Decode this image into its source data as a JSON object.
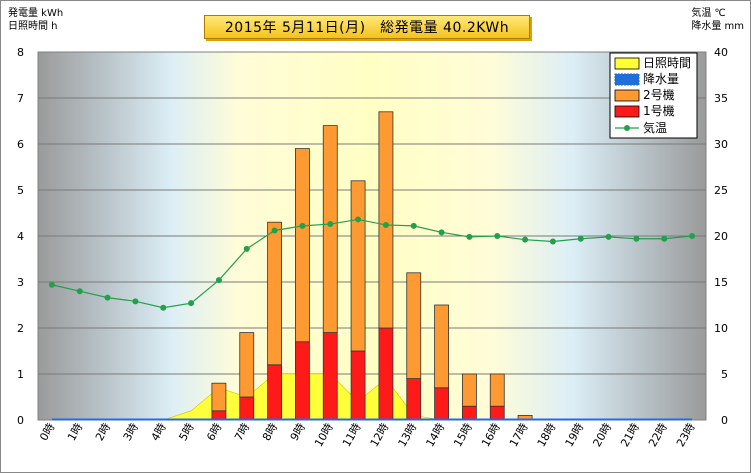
{
  "header": {
    "title": "2015年 5月11日(月)　総発電量 40.2KWh",
    "left_unit_line1": "発電量 kWh",
    "left_unit_line2": "日照時間 h",
    "right_unit_line1": "気温 ℃",
    "right_unit_line2": "降水量 mm"
  },
  "colors": {
    "sunshine": "#ffff33",
    "rain": "#1f6fd8",
    "unit2": "#ff9a33",
    "unit1": "#ff1a1a",
    "temp": "#22a04b"
  },
  "chart_data": {
    "type": "bar",
    "categories": [
      "0時",
      "1時",
      "2時",
      "3時",
      "4時",
      "5時",
      "6時",
      "7時",
      "8時",
      "9時",
      "10時",
      "11時",
      "12時",
      "13時",
      "14時",
      "15時",
      "16時",
      "17時",
      "18時",
      "19時",
      "20時",
      "21時",
      "22時",
      "23時"
    ],
    "ylim": [
      0,
      8
    ],
    "y2lim": [
      0,
      40
    ],
    "yticks": [
      0,
      1,
      2,
      3,
      4,
      5,
      6,
      7,
      8
    ],
    "y2ticks": [
      0,
      5,
      10,
      15,
      20,
      25,
      30,
      35,
      40
    ],
    "grid": true,
    "legend_position": "top-right",
    "legend": [
      "日照時間",
      "降水量",
      "2号機",
      "1号機",
      "気温"
    ],
    "series": [
      {
        "name": "日照時間",
        "kind": "area",
        "axis": "left",
        "values": [
          0,
          0,
          0,
          0,
          0,
          0.2,
          0.7,
          0.5,
          1.0,
          1.0,
          1.0,
          0.4,
          0.9,
          0.1,
          0,
          0,
          0,
          0,
          0,
          0,
          0,
          0,
          0,
          0
        ]
      },
      {
        "name": "降水量",
        "kind": "bar",
        "axis": "right",
        "values": [
          0,
          0,
          0,
          0,
          0,
          0,
          0,
          0,
          0,
          0,
          0,
          0,
          0,
          0,
          0,
          0,
          0,
          0,
          0,
          0,
          0,
          0,
          0,
          0
        ]
      },
      {
        "name": "2号機",
        "kind": "stacked-bar",
        "axis": "left",
        "values": [
          0,
          0,
          0,
          0,
          0,
          0,
          0.6,
          1.4,
          3.1,
          4.2,
          4.5,
          3.7,
          4.7,
          2.3,
          1.8,
          0.7,
          0.7,
          0.1,
          0,
          0,
          0,
          0,
          0,
          0
        ]
      },
      {
        "name": "1号機",
        "kind": "stacked-bar",
        "axis": "left",
        "values": [
          0,
          0,
          0,
          0,
          0,
          0,
          0.2,
          0.5,
          1.2,
          1.7,
          1.9,
          1.5,
          2.0,
          0.9,
          0.7,
          0.3,
          0.3,
          0,
          0,
          0,
          0,
          0,
          0,
          0
        ]
      },
      {
        "name": "気温",
        "kind": "line",
        "axis": "right",
        "values": [
          14.7,
          14.0,
          13.3,
          12.9,
          12.2,
          12.7,
          15.2,
          18.6,
          20.6,
          21.1,
          21.3,
          21.8,
          21.2,
          21.1,
          20.4,
          19.9,
          20.0,
          19.6,
          19.4,
          19.7,
          19.9,
          19.7,
          19.7,
          20.0
        ]
      }
    ]
  }
}
